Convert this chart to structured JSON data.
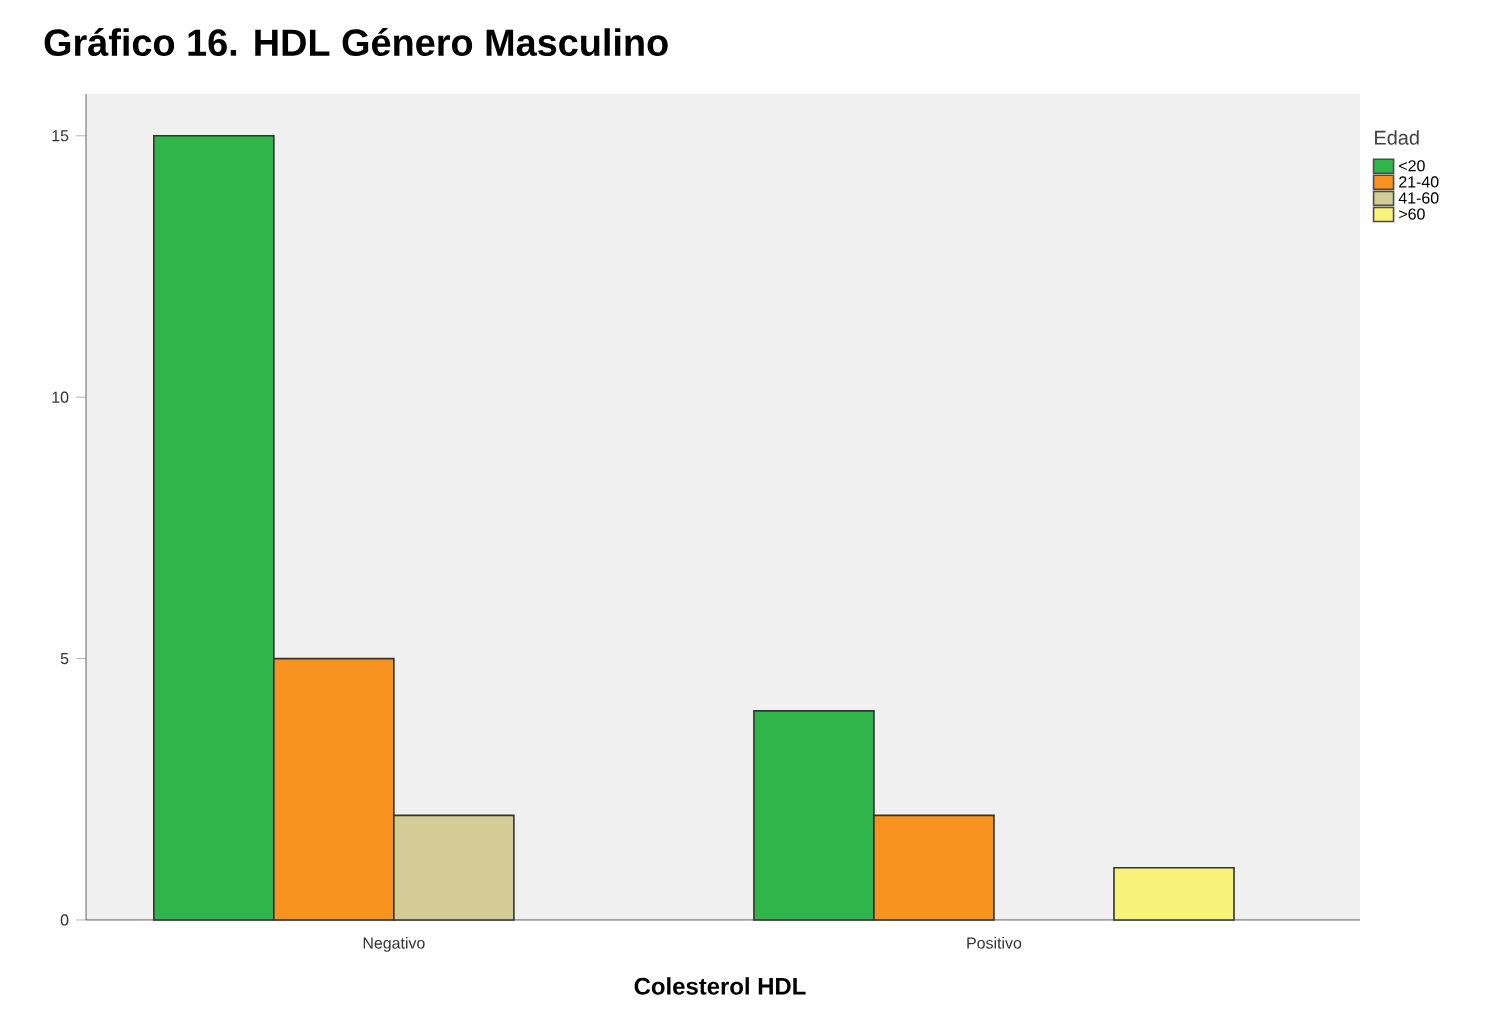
{
  "chart_data": {
    "type": "bar",
    "title": "Gráfico  16. HDL Género Masculino",
    "xlabel": "Colesterol HDL",
    "legend_title": "Edad",
    "categories": [
      "Negativo",
      "Positivo"
    ],
    "series": [
      {
        "name": "<20",
        "color": "#2fb54a",
        "values": [
          15,
          4
        ]
      },
      {
        "name": "21-40",
        "color": "#f7931e",
        "values": [
          5,
          2
        ]
      },
      {
        "name": "41-60",
        "color": "#d4cc96",
        "values": [
          2,
          null
        ]
      },
      {
        "name": ">60",
        "color": "#f8f37a",
        "values": [
          null,
          1
        ]
      }
    ],
    "ylim": [
      0,
      15.8
    ],
    "yticks": [
      0,
      5,
      10,
      15
    ],
    "grid": false,
    "legend": "top right"
  }
}
